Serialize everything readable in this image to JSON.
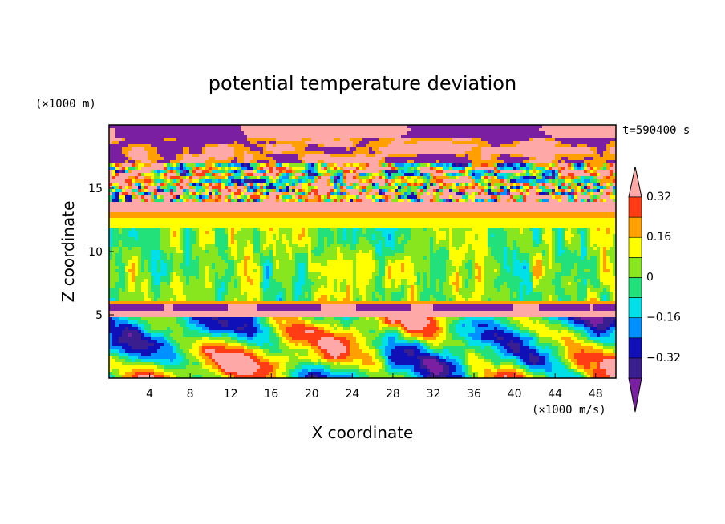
{
  "chart_data": {
    "type": "heatmap",
    "title": "potential temperature deviation",
    "xlabel": "X coordinate",
    "ylabel": "Z coordinate",
    "x_units": "(×1000 m/s)",
    "y_units": "(×1000 m)",
    "time_label": "t=590400 s",
    "xlim": [
      0,
      50
    ],
    "ylim": [
      0,
      20
    ],
    "x_ticks": [
      "4",
      "8",
      "12",
      "16",
      "20",
      "24",
      "28",
      "32",
      "36",
      "40",
      "44",
      "48"
    ],
    "y_ticks": [
      "5",
      "10",
      "15"
    ],
    "colorbar": {
      "levels": [
        -0.4,
        -0.32,
        -0.24,
        -0.16,
        -0.08,
        0,
        0.08,
        0.16,
        0.24,
        0.32,
        0.4
      ],
      "labels": [
        "0.32",
        "0.16",
        "0",
        "-0.16",
        "-0.32"
      ],
      "colors": [
        "#7a1fa2",
        "#3a1d8f",
        "#1010b8",
        "#0090ff",
        "#00e0e8",
        "#22e07a",
        "#88e61e",
        "#ffff00",
        "#ffa000",
        "#ff3c14",
        "#ffa8a8"
      ]
    },
    "grid": false
  }
}
